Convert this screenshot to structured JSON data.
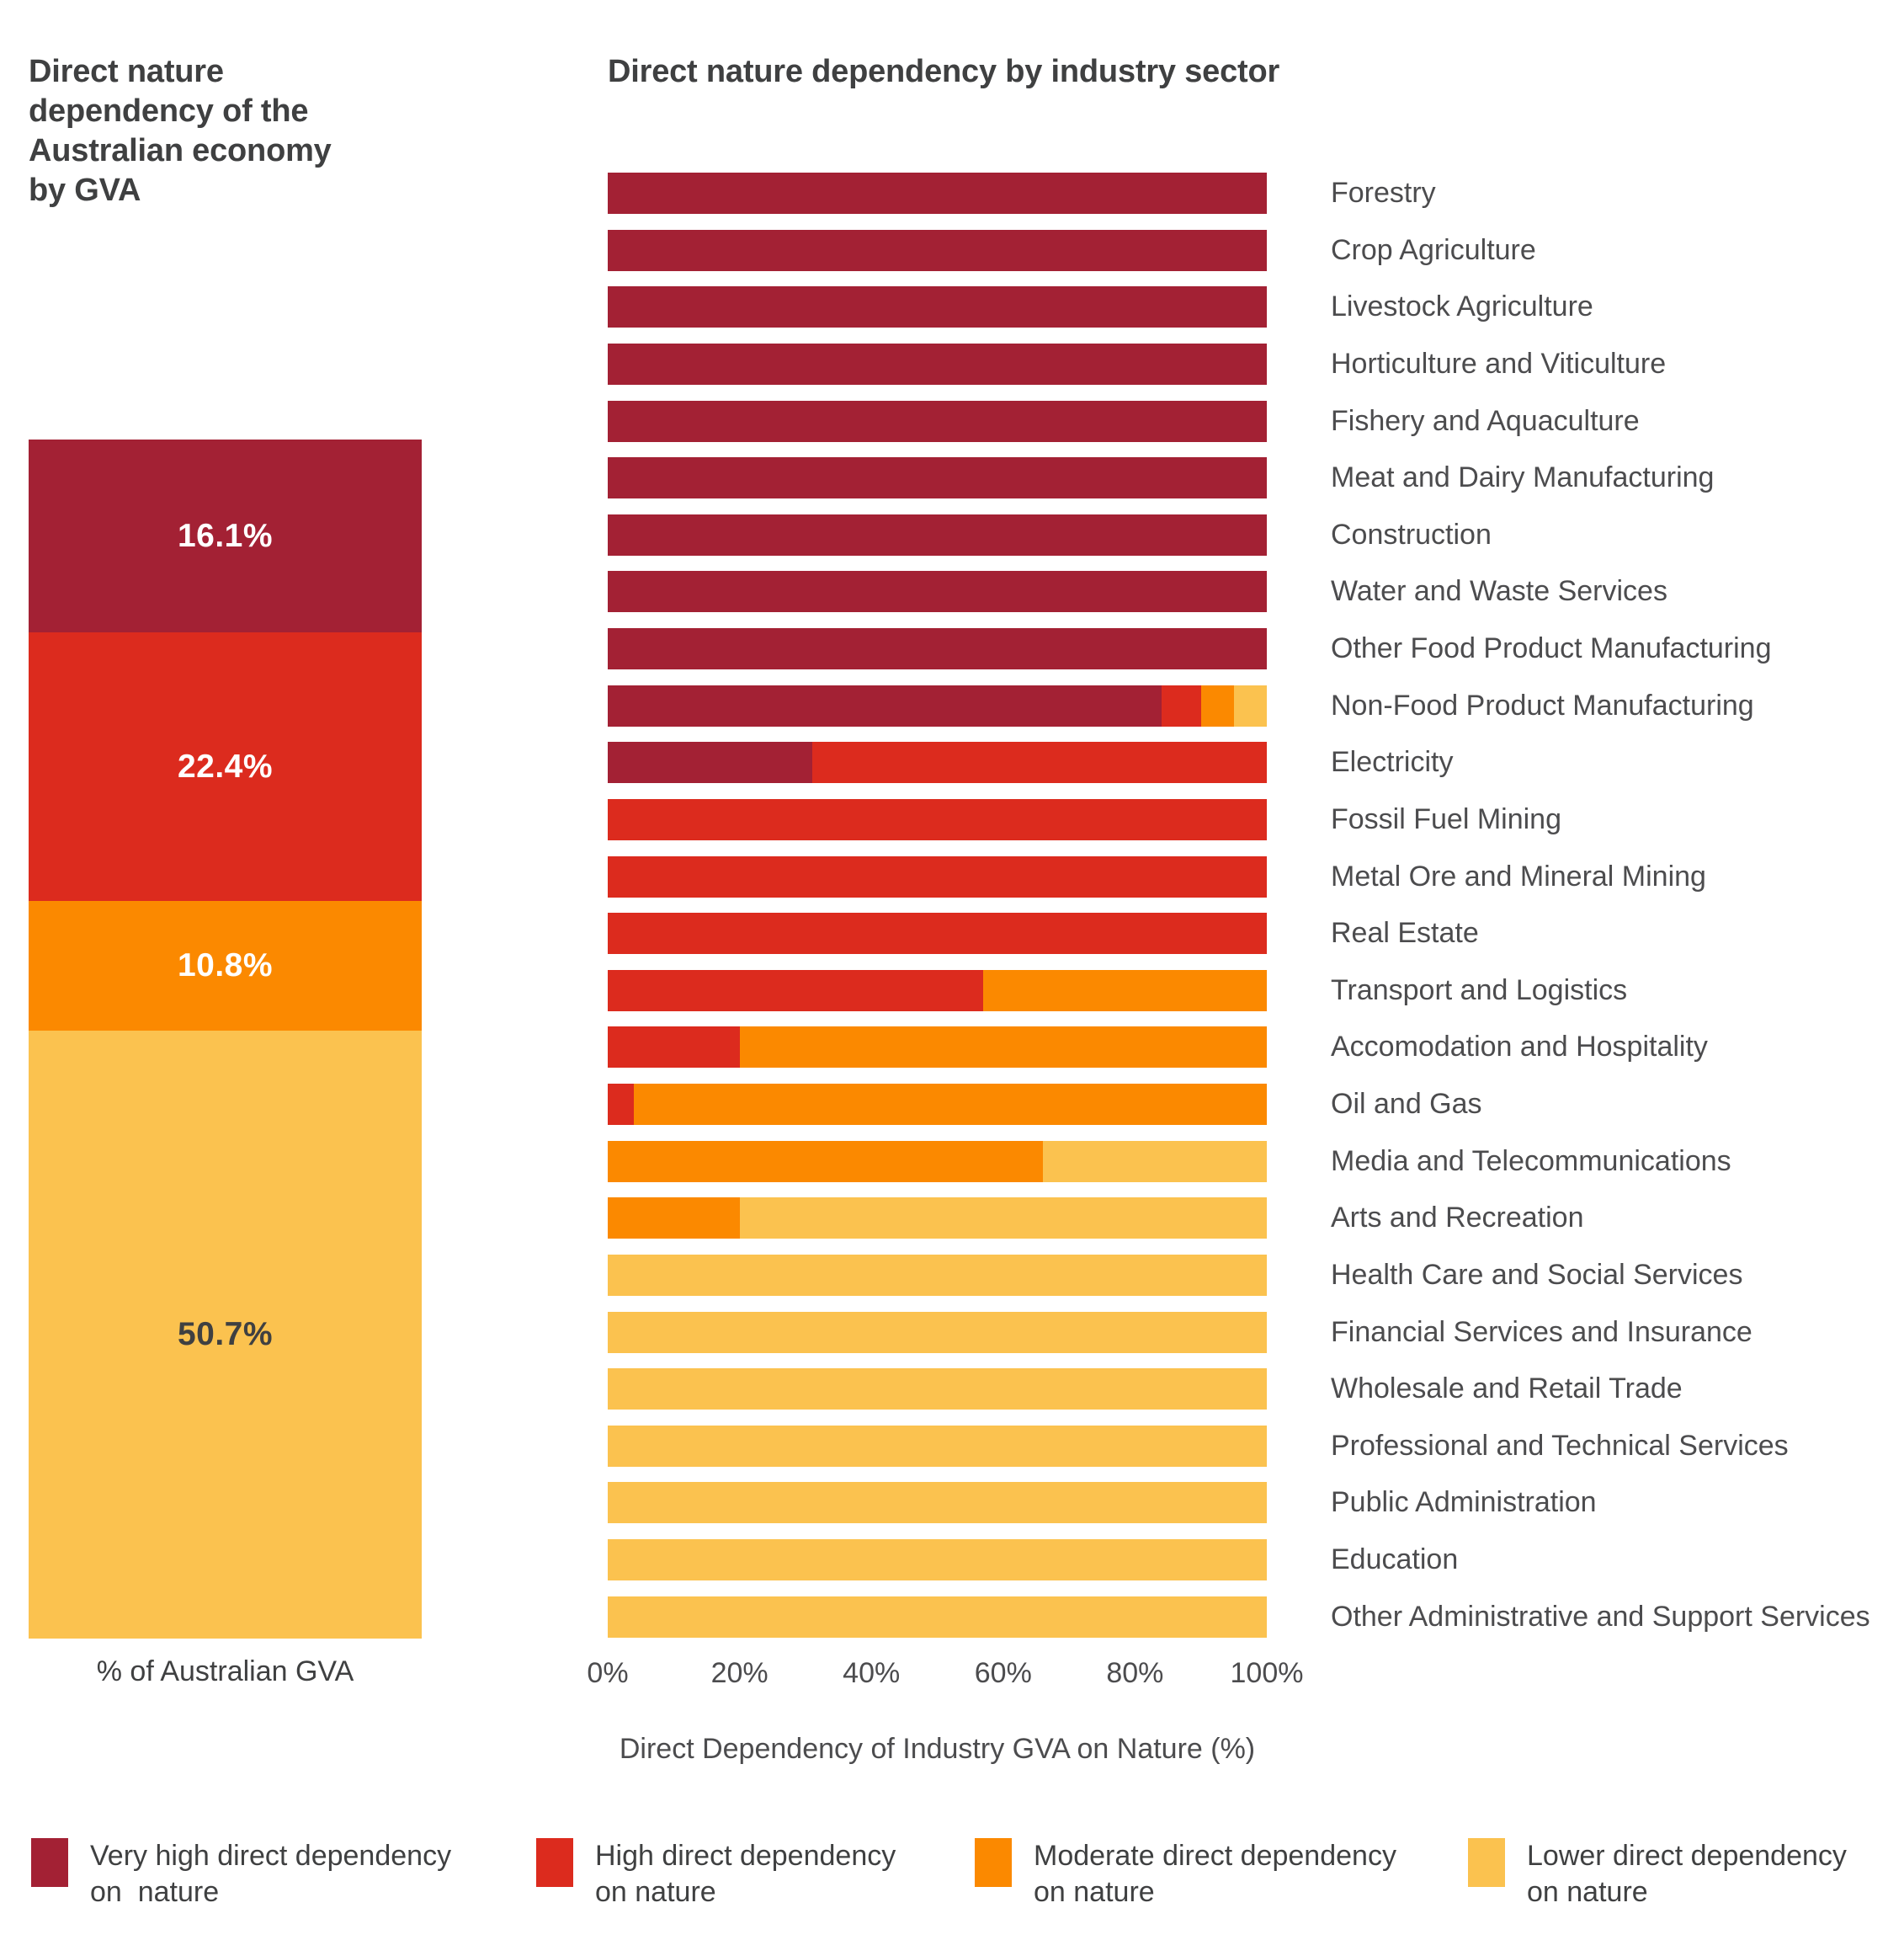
{
  "colors": {
    "very_high": "#A32134",
    "high": "#DC2B1E",
    "moderate": "#FB8900",
    "lower": "#FBC24F",
    "title_text": "#3F4041",
    "label_text": "#4C4C4E",
    "background": "#FFFFFF"
  },
  "legend": {
    "items": [
      {
        "label_line1": "Very high direct dependency",
        "label_line2": "on  nature",
        "color": "#A32134"
      },
      {
        "label_line1": "High direct dependency",
        "label_line2": "on nature",
        "color": "#DC2B1E"
      },
      {
        "label_line1": "Moderate direct dependency",
        "label_line2": "on nature",
        "color": "#FB8900"
      },
      {
        "label_line1": "Lower direct dependency",
        "label_line2": "on nature",
        "color": "#FBC24F"
      }
    ]
  },
  "chart_data": [
    {
      "id": "gva-stacked-column",
      "type": "bar",
      "subtype": "stacked_column",
      "title": "Direct nature dependency of the Australian economy by GVA",
      "xlabel": "% of Australian GVA",
      "ylim": [
        0,
        100
      ],
      "categories": [
        "Very high direct dependency on nature",
        "High direct dependency on nature",
        "Moderate direct dependency on nature",
        "Lower direct dependency on nature"
      ],
      "values": [
        16.1,
        22.4,
        10.8,
        50.7
      ],
      "segments": [
        {
          "name": "Very high direct dependency on nature",
          "value": 16.1,
          "label": "16.1%",
          "color": "#A32134",
          "label_color": "#FFFFFF"
        },
        {
          "name": "High direct dependency on nature",
          "value": 22.4,
          "label": "22.4%",
          "color": "#DC2B1E",
          "label_color": "#FFFFFF"
        },
        {
          "name": "Moderate direct dependency on nature",
          "value": 10.8,
          "label": "10.8%",
          "color": "#FB8900",
          "label_color": "#FFFFFF"
        },
        {
          "name": "Lower direct dependency on nature",
          "value": 50.7,
          "label": "50.7%",
          "color": "#FBC24F",
          "label_color": "#3F4041"
        }
      ]
    },
    {
      "id": "industry-stacked-bars",
      "type": "bar",
      "subtype": "stacked_horizontal",
      "title": "Direct nature dependency by industry sector",
      "xlabel": "Direct Dependency of Industry GVA on Nature (%)",
      "xlim": [
        0,
        100
      ],
      "x_ticks": [
        "0%",
        "20%",
        "40%",
        "60%",
        "80%",
        "100%"
      ],
      "grid": false,
      "legend_position": "bottom",
      "categories": [
        "Forestry",
        "Crop Agriculture",
        "Livestock Agriculture",
        "Horticulture and Viticulture",
        "Fishery and Aquaculture",
        "Meat and Dairy Manufacturing",
        "Construction",
        "Water and Waste Services",
        "Other Food Product Manufacturing",
        "Non-Food Product Manufacturing",
        "Electricity",
        "Fossil Fuel Mining",
        "Metal Ore and Mineral Mining",
        "Real Estate",
        "Transport and Logistics",
        "Accomodation and Hospitality",
        "Oil and Gas",
        "Media and Telecommunications",
        "Arts and Recreation",
        "Health Care and Social Services",
        "Financial Services and Insurance",
        "Wholesale and Retail Trade",
        "Professional and Technical Services",
        "Public Administration",
        "Education",
        "Other Administrative and Support Services"
      ],
      "series": [
        {
          "name": "Very high direct dependency on nature",
          "color": "#A32134",
          "values": [
            100,
            100,
            100,
            100,
            100,
            100,
            100,
            100,
            100,
            84,
            31,
            0,
            0,
            0,
            0,
            0,
            0,
            0,
            0,
            0,
            0,
            0,
            0,
            0,
            0,
            0
          ]
        },
        {
          "name": "High direct dependency on nature",
          "color": "#DC2B1E",
          "values": [
            0,
            0,
            0,
            0,
            0,
            0,
            0,
            0,
            0,
            6,
            69,
            100,
            100,
            100,
            57,
            20,
            4,
            0,
            0,
            0,
            0,
            0,
            0,
            0,
            0,
            0
          ]
        },
        {
          "name": "Moderate direct dependency on nature",
          "color": "#FB8900",
          "values": [
            0,
            0,
            0,
            0,
            0,
            0,
            0,
            0,
            0,
            5,
            0,
            0,
            0,
            0,
            43,
            80,
            96,
            66,
            20,
            0,
            0,
            0,
            0,
            0,
            0,
            0
          ]
        },
        {
          "name": "Lower direct dependency on nature",
          "color": "#FBC24F",
          "values": [
            0,
            0,
            0,
            0,
            0,
            0,
            0,
            0,
            0,
            5,
            0,
            0,
            0,
            0,
            0,
            0,
            0,
            34,
            80,
            100,
            100,
            100,
            100,
            100,
            100,
            100
          ]
        }
      ]
    }
  ]
}
